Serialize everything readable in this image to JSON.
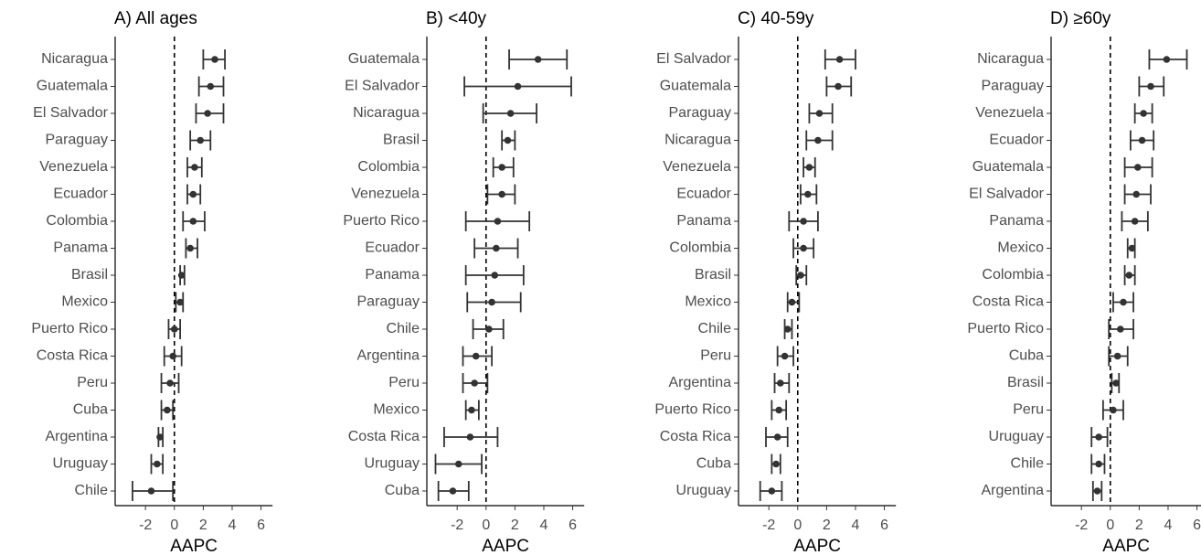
{
  "chart_data": [
    {
      "type": "forest",
      "title": "A) All ages",
      "x_label": "AAPC",
      "color": "#333333",
      "refline": 0,
      "categories": [
        "Nicaragua",
        "Guatemala",
        "El Salvador",
        "Paraguay",
        "Venezuela",
        "Ecuador",
        "Colombia",
        "Panama",
        "Brasil",
        "Mexico",
        "Puerto Rico",
        "Costa Rica",
        "Peru",
        "Cuba",
        "Argentina",
        "Uruguay",
        "Chile"
      ],
      "values": [
        2.8,
        2.5,
        2.3,
        1.8,
        1.4,
        1.3,
        1.3,
        1.1,
        0.5,
        0.4,
        0.0,
        -0.1,
        -0.3,
        -0.5,
        -1.0,
        -1.2,
        -1.6
      ],
      "lower": [
        2.0,
        1.7,
        1.5,
        1.1,
        0.9,
        0.9,
        0.6,
        0.8,
        0.4,
        0.1,
        -0.4,
        -0.7,
        -0.9,
        -0.9,
        -1.1,
        -1.6,
        -2.9
      ],
      "upper": [
        3.5,
        3.4,
        3.4,
        2.5,
        1.9,
        1.8,
        2.1,
        1.6,
        0.7,
        0.6,
        0.4,
        0.5,
        0.3,
        -0.1,
        -0.8,
        -0.8,
        -0.1
      ],
      "xlim": [
        -4.1,
        6.8
      ],
      "xticks": [
        -2,
        0,
        2,
        4,
        6
      ]
    },
    {
      "type": "forest",
      "title": "B) <40y",
      "x_label": "AAPC",
      "color": "#333333",
      "refline": 0,
      "categories": [
        "Guatemala",
        "El Salvador",
        "Nicaragua",
        "Brasil",
        "Colombia",
        "Venezuela",
        "Puerto Rico",
        "Ecuador",
        "Panama",
        "Paraguay",
        "Chile",
        "Argentina",
        "Peru",
        "Mexico",
        "Costa Rica",
        "Uruguay",
        "Cuba"
      ],
      "values": [
        3.6,
        2.2,
        1.7,
        1.5,
        1.1,
        1.1,
        0.8,
        0.7,
        0.6,
        0.4,
        0.2,
        -0.7,
        -0.8,
        -1.0,
        -1.1,
        -1.9,
        -2.3
      ],
      "lower": [
        1.6,
        -1.5,
        -0.2,
        1.1,
        0.5,
        0.1,
        -1.4,
        -0.8,
        -1.4,
        -1.3,
        -0.9,
        -1.6,
        -1.6,
        -1.4,
        -2.9,
        -3.5,
        -3.3
      ],
      "upper": [
        5.6,
        5.9,
        3.5,
        2.0,
        1.9,
        2.0,
        3.0,
        2.2,
        2.6,
        2.4,
        1.2,
        0.4,
        0.1,
        -0.5,
        0.8,
        -0.3,
        -1.2
      ],
      "xlim": [
        -4.1,
        6.8
      ],
      "xticks": [
        -2,
        0,
        2,
        4,
        6
      ]
    },
    {
      "type": "forest",
      "title": "C) 40-59y",
      "x_label": "AAPC",
      "color": "#333333",
      "refline": 0,
      "categories": [
        "El Salvador",
        "Guatemala",
        "Paraguay",
        "Nicaragua",
        "Venezuela",
        "Ecuador",
        "Panama",
        "Colombia",
        "Brasil",
        "Mexico",
        "Chile",
        "Peru",
        "Argentina",
        "Puerto Rico",
        "Costa Rica",
        "Cuba",
        "Uruguay"
      ],
      "values": [
        2.9,
        2.8,
        1.5,
        1.4,
        0.8,
        0.7,
        0.4,
        0.4,
        0.2,
        -0.4,
        -0.7,
        -0.9,
        -1.2,
        -1.3,
        -1.4,
        -1.5,
        -1.8
      ],
      "lower": [
        1.9,
        2.0,
        0.8,
        0.6,
        0.4,
        0.2,
        -0.6,
        -0.3,
        -0.1,
        -0.7,
        -0.9,
        -1.4,
        -1.6,
        -1.8,
        -2.2,
        -1.8,
        -2.6
      ],
      "upper": [
        4.0,
        3.7,
        2.4,
        2.4,
        1.2,
        1.3,
        1.4,
        1.1,
        0.6,
        0.1,
        -0.4,
        -0.3,
        -0.6,
        -0.8,
        -0.7,
        -1.2,
        -1.1
      ],
      "xlim": [
        -4.1,
        6.8
      ],
      "xticks": [
        -2,
        0,
        2,
        4,
        6
      ]
    },
    {
      "type": "forest",
      "title": "D) ≥60y",
      "x_label": "AAPC",
      "color": "#333333",
      "refline": 0,
      "categories": [
        "Nicaragua",
        "Paraguay",
        "Venezuela",
        "Ecuador",
        "Guatemala",
        "El Salvador",
        "Panama",
        "Mexico",
        "Colombia",
        "Costa Rica",
        "Puerto Rico",
        "Cuba",
        "Brasil",
        "Peru",
        "Uruguay",
        "Chile",
        "Argentina"
      ],
      "values": [
        3.9,
        2.8,
        2.3,
        2.2,
        1.9,
        1.8,
        1.7,
        1.5,
        1.3,
        0.9,
        0.7,
        0.5,
        0.4,
        0.2,
        -0.8,
        -0.8,
        -0.9
      ],
      "lower": [
        2.7,
        2.0,
        1.7,
        1.4,
        1.0,
        1.0,
        0.8,
        1.2,
        1.0,
        0.2,
        -0.1,
        -0.1,
        0.1,
        -0.5,
        -1.3,
        -1.3,
        -1.2
      ],
      "upper": [
        5.3,
        3.7,
        2.9,
        3.0,
        2.9,
        2.8,
        2.6,
        1.7,
        1.7,
        1.6,
        1.6,
        1.2,
        0.6,
        0.9,
        -0.2,
        -0.4,
        -0.6
      ],
      "xlim": [
        -4.1,
        6.3
      ],
      "xticks": [
        -2,
        0,
        2,
        4,
        6
      ]
    }
  ]
}
